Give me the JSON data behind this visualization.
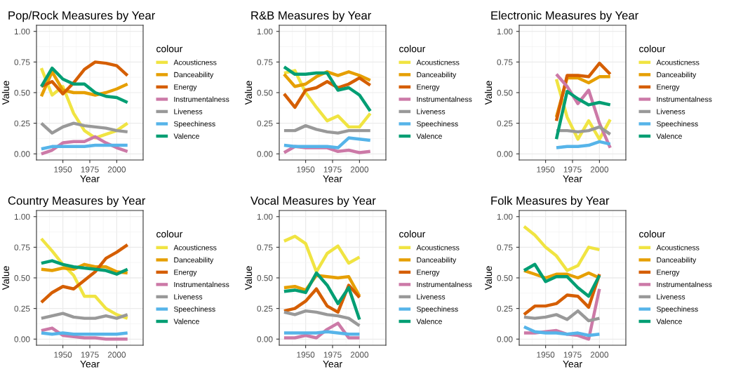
{
  "chart_data": [
    {
      "type": "line",
      "title": "Pop/Rock Measures by Year",
      "xlabel": "Year",
      "ylabel": "Value",
      "legend_title": "colour",
      "legend": "right",
      "grid": true,
      "xlim": [
        1925.5,
        2024.5
      ],
      "xticks": [
        1950,
        1975,
        2000
      ],
      "ylim": [
        -0.05,
        1.05
      ],
      "yticks": [
        {
          "value": 0,
          "label": "0.00"
        },
        {
          "value": 0.25,
          "label": "0.25"
        },
        {
          "value": 0.5,
          "label": "0.50"
        },
        {
          "value": 0.75,
          "label": "0.75"
        },
        {
          "value": 1,
          "label": "1.00"
        }
      ],
      "x": [
        1930,
        1940,
        1950,
        1960,
        1970,
        1980,
        1990,
        2000,
        2010
      ],
      "series": [
        {
          "name": "Acousticness",
          "color": "#f0e442",
          "values": [
            0.7,
            0.48,
            0.55,
            0.33,
            0.19,
            0.13,
            0.16,
            0.19,
            0.25
          ]
        },
        {
          "name": "Danceability",
          "color": "#e69f00",
          "values": [
            0.47,
            0.67,
            0.52,
            0.5,
            0.5,
            0.48,
            0.5,
            0.53,
            0.57
          ]
        },
        {
          "name": "Energy",
          "color": "#d55e00",
          "values": [
            0.55,
            0.59,
            0.49,
            0.58,
            0.69,
            0.75,
            0.74,
            0.72,
            0.64
          ]
        },
        {
          "name": "Instrumentalness",
          "color": "#cc79a7",
          "values": [
            0.0,
            0.03,
            0.09,
            0.1,
            0.1,
            0.14,
            0.09,
            0.05,
            0.02
          ]
        },
        {
          "name": "Liveness",
          "color": "#999999",
          "values": [
            0.25,
            0.17,
            0.22,
            0.25,
            0.23,
            0.22,
            0.21,
            0.19,
            0.18
          ]
        },
        {
          "name": "Speechiness",
          "color": "#56b4e9",
          "values": [
            0.04,
            0.06,
            0.06,
            0.06,
            0.06,
            0.07,
            0.07,
            0.07,
            0.07
          ]
        },
        {
          "name": "Valence",
          "color": "#009e73",
          "values": [
            0.55,
            0.7,
            0.61,
            0.57,
            0.57,
            0.5,
            0.47,
            0.46,
            0.42
          ]
        }
      ]
    },
    {
      "type": "line",
      "title": "R&B Measures by Year",
      "xlabel": "Year",
      "ylabel": "Value",
      "legend_title": "colour",
      "legend": "right",
      "grid": true,
      "xlim": [
        1925.5,
        2024.5
      ],
      "xticks": [
        1950,
        1975,
        2000
      ],
      "ylim": [
        -0.05,
        1.05
      ],
      "yticks": [
        {
          "value": 0,
          "label": "0.00"
        },
        {
          "value": 0.25,
          "label": "0.25"
        },
        {
          "value": 0.5,
          "label": "0.50"
        },
        {
          "value": 0.75,
          "label": "0.75"
        },
        {
          "value": 1,
          "label": "1.00"
        }
      ],
      "x": [
        1930,
        1940,
        1950,
        1960,
        1970,
        1980,
        1990,
        2000,
        2010
      ],
      "series": [
        {
          "name": "Acousticness",
          "color": "#f0e442",
          "values": [
            0.66,
            0.68,
            0.5,
            0.38,
            0.27,
            0.31,
            0.22,
            0.22,
            0.33
          ]
        },
        {
          "name": "Danceability",
          "color": "#e69f00",
          "values": [
            0.65,
            0.55,
            0.57,
            0.63,
            0.67,
            0.64,
            0.67,
            0.64,
            0.6
          ]
        },
        {
          "name": "Energy",
          "color": "#d55e00",
          "values": [
            0.49,
            0.38,
            0.52,
            0.54,
            0.59,
            0.54,
            0.57,
            0.62,
            0.56
          ]
        },
        {
          "name": "Instrumentalness",
          "color": "#cc79a7",
          "values": [
            0.01,
            0.06,
            0.05,
            0.05,
            0.05,
            0.02,
            0.03,
            0.01,
            0.02
          ]
        },
        {
          "name": "Liveness",
          "color": "#999999",
          "values": [
            0.19,
            0.19,
            0.23,
            0.2,
            0.18,
            0.17,
            0.19,
            0.19,
            0.19
          ]
        },
        {
          "name": "Speechiness",
          "color": "#56b4e9",
          "values": [
            0.07,
            0.06,
            0.06,
            0.06,
            0.06,
            0.05,
            0.13,
            0.12,
            0.11
          ]
        },
        {
          "name": "Valence",
          "color": "#009e73",
          "values": [
            0.71,
            0.65,
            0.65,
            0.66,
            0.66,
            0.52,
            0.54,
            0.48,
            0.35
          ]
        }
      ]
    },
    {
      "type": "line",
      "title": "Electronic Measures by Year",
      "xlabel": "Year",
      "ylabel": "Value",
      "legend_title": "colour",
      "legend": "right",
      "grid": true,
      "xlim": [
        1925.5,
        2024.5
      ],
      "xticks": [
        1950,
        1975,
        2000
      ],
      "ylim": [
        -0.05,
        1.05
      ],
      "yticks": [
        {
          "value": 0,
          "label": "0.00"
        },
        {
          "value": 0.25,
          "label": "0.25"
        },
        {
          "value": 0.5,
          "label": "0.50"
        },
        {
          "value": 0.75,
          "label": "0.75"
        },
        {
          "value": 1,
          "label": "1.00"
        }
      ],
      "x": [
        1960,
        1970,
        1980,
        1990,
        2000,
        2010
      ],
      "series": [
        {
          "name": "Acousticness",
          "color": "#f0e442",
          "values": [
            0.61,
            0.3,
            0.12,
            0.27,
            0.12,
            0.28
          ]
        },
        {
          "name": "Danceability",
          "color": "#e69f00",
          "values": [
            0.3,
            0.62,
            0.62,
            0.58,
            0.63,
            0.63
          ]
        },
        {
          "name": "Energy",
          "color": "#d55e00",
          "values": [
            0.27,
            0.64,
            0.64,
            0.63,
            0.74,
            0.65
          ]
        },
        {
          "name": "Instrumentalness",
          "color": "#cc79a7",
          "values": [
            0.65,
            0.55,
            0.41,
            0.52,
            0.25,
            0.05
          ]
        },
        {
          "name": "Liveness",
          "color": "#999999",
          "values": [
            0.19,
            0.19,
            0.18,
            0.19,
            0.22,
            0.16
          ]
        },
        {
          "name": "Speechiness",
          "color": "#56b4e9",
          "values": [
            0.05,
            0.06,
            0.06,
            0.07,
            0.1,
            0.08
          ]
        },
        {
          "name": "Valence",
          "color": "#009e73",
          "values": [
            0.12,
            0.51,
            0.45,
            0.4,
            0.42,
            0.4
          ]
        }
      ]
    },
    {
      "type": "line",
      "title": "Country Measures by Year",
      "xlabel": "Year",
      "ylabel": "Value",
      "legend_title": "colour",
      "legend": "right",
      "grid": true,
      "xlim": [
        1925.5,
        2024.5
      ],
      "xticks": [
        1950,
        1975,
        2000
      ],
      "ylim": [
        -0.05,
        1.05
      ],
      "yticks": [
        {
          "value": 0,
          "label": "0.00"
        },
        {
          "value": 0.25,
          "label": "0.25"
        },
        {
          "value": 0.5,
          "label": "0.50"
        },
        {
          "value": 0.75,
          "label": "0.75"
        },
        {
          "value": 1,
          "label": "1.00"
        }
      ],
      "x": [
        1930,
        1940,
        1950,
        1960,
        1970,
        1980,
        1990,
        2000,
        2010
      ],
      "series": [
        {
          "name": "Acousticness",
          "color": "#f0e442",
          "values": [
            0.82,
            0.72,
            0.61,
            0.52,
            0.35,
            0.35,
            0.25,
            0.2,
            0.17
          ]
        },
        {
          "name": "Danceability",
          "color": "#e69f00",
          "values": [
            0.57,
            0.56,
            0.58,
            0.57,
            0.61,
            0.59,
            0.59,
            0.55,
            0.54
          ]
        },
        {
          "name": "Energy",
          "color": "#d55e00",
          "values": [
            0.3,
            0.38,
            0.43,
            0.41,
            0.48,
            0.55,
            0.66,
            0.71,
            0.77
          ]
        },
        {
          "name": "Instrumentalness",
          "color": "#cc79a7",
          "values": [
            0.07,
            0.09,
            0.03,
            0.02,
            0.01,
            0.01,
            0.0,
            0.0,
            0.0
          ]
        },
        {
          "name": "Liveness",
          "color": "#999999",
          "values": [
            0.17,
            0.19,
            0.21,
            0.18,
            0.17,
            0.17,
            0.19,
            0.17,
            0.2
          ]
        },
        {
          "name": "Speechiness",
          "color": "#56b4e9",
          "values": [
            0.05,
            0.04,
            0.05,
            0.04,
            0.04,
            0.04,
            0.04,
            0.04,
            0.05
          ]
        },
        {
          "name": "Valence",
          "color": "#009e73",
          "values": [
            0.62,
            0.64,
            0.61,
            0.59,
            0.58,
            0.57,
            0.56,
            0.53,
            0.57
          ]
        }
      ]
    },
    {
      "type": "line",
      "title": "Vocal Measures by Year",
      "xlabel": "Year",
      "ylabel": "Value",
      "legend_title": "colour",
      "legend": "right",
      "grid": true,
      "xlim": [
        1925.5,
        2024.5
      ],
      "xticks": [
        1950,
        1975,
        2000
      ],
      "ylim": [
        -0.05,
        1.05
      ],
      "yticks": [
        {
          "value": 0,
          "label": "0.00"
        },
        {
          "value": 0.25,
          "label": "0.25"
        },
        {
          "value": 0.5,
          "label": "0.50"
        },
        {
          "value": 0.75,
          "label": "0.75"
        },
        {
          "value": 1,
          "label": "1.00"
        }
      ],
      "x": [
        1930,
        1940,
        1950,
        1960,
        1970,
        1980,
        1990,
        2000
      ],
      "series": [
        {
          "name": "Acousticness",
          "color": "#f0e442",
          "values": [
            0.8,
            0.84,
            0.78,
            0.55,
            0.7,
            0.76,
            0.62,
            0.67
          ]
        },
        {
          "name": "Danceability",
          "color": "#e69f00",
          "values": [
            0.42,
            0.43,
            0.4,
            0.52,
            0.51,
            0.5,
            0.51,
            0.35
          ]
        },
        {
          "name": "Energy",
          "color": "#d55e00",
          "values": [
            0.23,
            0.25,
            0.31,
            0.41,
            0.27,
            0.22,
            0.44,
            0.34
          ]
        },
        {
          "name": "Instrumentalness",
          "color": "#cc79a7",
          "values": [
            0.01,
            0.01,
            0.03,
            0.01,
            0.08,
            0.13,
            0.01,
            0.01
          ]
        },
        {
          "name": "Liveness",
          "color": "#999999",
          "values": [
            0.22,
            0.2,
            0.23,
            0.22,
            0.2,
            0.19,
            0.17,
            0.11
          ]
        },
        {
          "name": "Speechiness",
          "color": "#56b4e9",
          "values": [
            0.05,
            0.05,
            0.05,
            0.05,
            0.06,
            0.05,
            0.04,
            0.04
          ]
        },
        {
          "name": "Valence",
          "color": "#009e73",
          "values": [
            0.39,
            0.4,
            0.38,
            0.54,
            0.44,
            0.29,
            0.42,
            0.16
          ]
        }
      ]
    },
    {
      "type": "line",
      "title": "Folk Measures by Year",
      "xlabel": "Year",
      "ylabel": "Value",
      "legend_title": "colour",
      "legend": "right",
      "grid": true,
      "xlim": [
        1925.5,
        2024.5
      ],
      "xticks": [
        1950,
        1975,
        2000
      ],
      "ylim": [
        -0.05,
        1.05
      ],
      "yticks": [
        {
          "value": 0,
          "label": "0.00"
        },
        {
          "value": 0.25,
          "label": "0.25"
        },
        {
          "value": 0.5,
          "label": "0.50"
        },
        {
          "value": 0.75,
          "label": "0.75"
        },
        {
          "value": 1,
          "label": "1.00"
        }
      ],
      "x": [
        1930,
        1940,
        1950,
        1960,
        1970,
        1980,
        1990,
        2000
      ],
      "series": [
        {
          "name": "Acousticness",
          "color": "#f0e442",
          "values": [
            0.92,
            0.85,
            0.75,
            0.68,
            0.56,
            0.6,
            0.75,
            0.73
          ]
        },
        {
          "name": "Danceability",
          "color": "#e69f00",
          "values": [
            0.56,
            0.53,
            0.5,
            0.53,
            0.53,
            0.5,
            0.54,
            0.5
          ]
        },
        {
          "name": "Energy",
          "color": "#d55e00",
          "values": [
            0.2,
            0.27,
            0.27,
            0.29,
            0.36,
            0.35,
            0.26,
            0.53
          ]
        },
        {
          "name": "Instrumentalness",
          "color": "#cc79a7",
          "values": [
            0.05,
            0.05,
            0.06,
            0.07,
            0.04,
            0.03,
            0.0,
            0.41
          ]
        },
        {
          "name": "Liveness",
          "color": "#999999",
          "values": [
            0.18,
            0.17,
            0.18,
            0.2,
            0.16,
            0.23,
            0.15,
            0.17
          ]
        },
        {
          "name": "Speechiness",
          "color": "#56b4e9",
          "values": [
            0.1,
            0.06,
            0.05,
            0.05,
            0.04,
            0.05,
            0.03,
            0.04
          ]
        },
        {
          "name": "Valence",
          "color": "#009e73",
          "values": [
            0.56,
            0.61,
            0.47,
            0.51,
            0.51,
            0.42,
            0.35,
            0.52
          ]
        }
      ]
    }
  ]
}
